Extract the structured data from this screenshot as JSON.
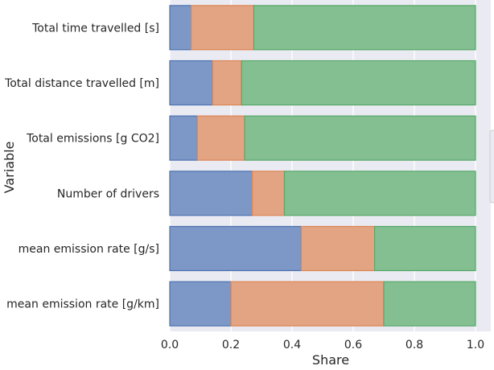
{
  "chart_data": {
    "type": "bar",
    "orientation": "horizontal",
    "stacked": true,
    "xlabel": "Share",
    "ylabel": "Variable",
    "xlim": [
      0,
      1.0
    ],
    "xticks": [
      "0.0",
      "0.2",
      "0.4",
      "0.6",
      "0.8",
      "1.0"
    ],
    "grid": true,
    "legend": "right (mostly cut off)",
    "categories": [
      "Total time travelled [s]",
      "Total distance travelled [m]",
      "Total emissions [g CO2]",
      "Number of drivers",
      "mean emission rate [g/s]",
      "mean emission rate [g/km]"
    ],
    "series": [
      {
        "values": [
          0.07,
          0.14,
          0.09,
          0.27,
          0.43,
          0.2
        ],
        "color": "#7d97c6",
        "edge": "#4c72b0"
      },
      {
        "values": [
          0.205,
          0.095,
          0.155,
          0.105,
          0.24,
          0.5
        ],
        "color": "#e2a483",
        "edge": "#dd8452"
      },
      {
        "values": [
          0.725,
          0.765,
          0.755,
          0.625,
          0.33,
          0.3
        ],
        "color": "#84bf92",
        "edge": "#55a868"
      }
    ],
    "background": "#eaeaf2",
    "grid_color": "#ffffff"
  }
}
